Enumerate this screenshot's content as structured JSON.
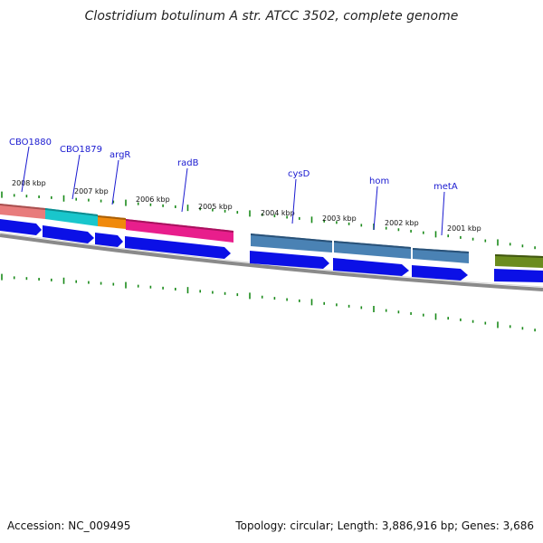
{
  "title": "Clostridium botulinum A str. ATCC 3502, complete genome",
  "footer": {
    "accession": "Accession: NC_009495",
    "summary": "Topology: circular; Length: 3,886,916 bp; Genes: 3,686"
  },
  "scale_labels": [
    "2008 kbp",
    "2007 kbp",
    "2006 kbp",
    "2005 kbp",
    "2004 kbp",
    "2003 kbp",
    "2002 kbp",
    "2001 kbp"
  ],
  "gene_labels": [
    "CBO1880",
    "CBO1879",
    "argR",
    "radB",
    "cysD",
    "hom",
    "metA"
  ],
  "colors": {
    "salmon": "#e87c7c",
    "cyan": "#19c6cc",
    "orange": "#f08a0c",
    "magenta": "#e81e8c",
    "steelblue": "#4a82b4",
    "olive": "#6b8c1e",
    "cds_blue": "#0b10e6",
    "tick_green": "#1a8a1a",
    "backbone": "#8a8a8a"
  }
}
